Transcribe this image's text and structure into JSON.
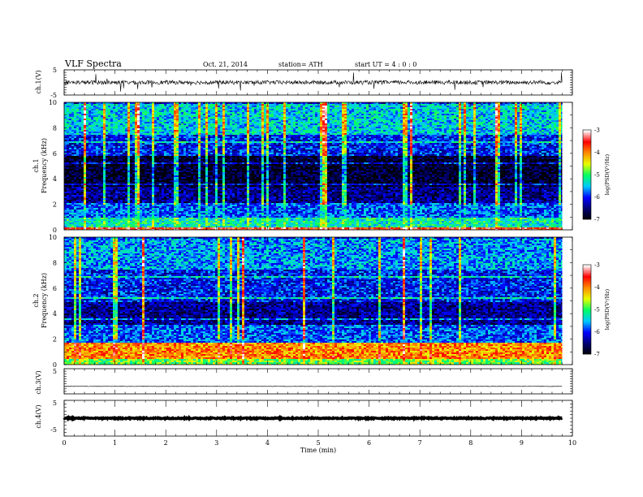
{
  "header": {
    "title": "VLF  Spectra",
    "date": "Oct. 21, 2014",
    "station": "station= ATH",
    "start": "start  UT  =   4  : 0  : 0"
  },
  "chart_data": [
    {
      "type": "line",
      "id": "ch1-voltage",
      "ylabel": "ch.1(V)",
      "ylim": [
        -5,
        5
      ],
      "yticks": [
        "5",
        "-5"
      ],
      "xlim": [
        0,
        10
      ],
      "signal": {
        "baseline": 0.0,
        "noise_amplitude": 0.8,
        "spike_amplitude": 4.0,
        "end_time": 9.8
      }
    },
    {
      "type": "heatmap",
      "id": "ch1-spectrogram",
      "ylabel": "ch.1\nFrequency  (kHz)",
      "ylabel_lines": [
        "ch.1",
        "Frequency  (kHz)"
      ],
      "ylim": [
        0,
        10
      ],
      "yticks": [
        "0",
        "2",
        "4",
        "6",
        "8",
        "10"
      ],
      "xlim": [
        0,
        10
      ],
      "end_time": 9.8,
      "bands": [
        {
          "f0": 0.0,
          "f1": 0.3,
          "level": -3.6
        },
        {
          "f0": 0.3,
          "f1": 1.0,
          "level": -5.2
        },
        {
          "f0": 1.0,
          "f1": 2.2,
          "level": -5.8
        },
        {
          "f0": 2.2,
          "f1": 3.4,
          "level": -6.4
        },
        {
          "f0": 3.4,
          "f1": 5.9,
          "level": -6.8
        },
        {
          "f0": 5.9,
          "f1": 7.5,
          "level": -6.0
        },
        {
          "f0": 7.5,
          "f1": 10.0,
          "level": -5.4
        }
      ],
      "colorbar": {
        "label": "log(PSD(V²/Hz)",
        "ticks": [
          "-3",
          "-4",
          "-5",
          "-6",
          "-7"
        ],
        "range": [
          -7,
          -3
        ],
        "colors": [
          "#000000",
          "#00006e",
          "#0000ff",
          "#00c8ff",
          "#00ff64",
          "#e6ff00",
          "#ff8c00",
          "#ff0000",
          "#ffffff"
        ]
      }
    },
    {
      "type": "heatmap",
      "id": "ch2-spectrogram",
      "ylabel": "ch.2\nFrequency  (kHz)",
      "ylabel_lines": [
        "ch.2",
        "Frequency  (kHz)"
      ],
      "ylim": [
        0,
        10
      ],
      "yticks": [
        "0",
        "2",
        "4",
        "6",
        "8",
        "10"
      ],
      "xlim": [
        0,
        10
      ],
      "end_time": 9.8,
      "bands": [
        {
          "f0": 0.0,
          "f1": 0.5,
          "level": -4.8
        },
        {
          "f0": 0.5,
          "f1": 1.8,
          "level": -4.0
        },
        {
          "f0": 1.8,
          "f1": 3.2,
          "level": -5.8
        },
        {
          "f0": 3.2,
          "f1": 5.0,
          "level": -6.4
        },
        {
          "f0": 5.0,
          "f1": 7.5,
          "level": -6.0
        },
        {
          "f0": 7.5,
          "f1": 10.0,
          "level": -5.6
        }
      ],
      "colorbar": {
        "label": "log(PSD(V²/Hz)",
        "ticks": [
          "-3",
          "-4",
          "-5",
          "-6",
          "-7"
        ],
        "range": [
          -7,
          -3
        ],
        "colors": [
          "#000000",
          "#00006e",
          "#0000ff",
          "#00c8ff",
          "#00ff64",
          "#e6ff00",
          "#ff8c00",
          "#ff0000",
          "#ffffff"
        ]
      }
    },
    {
      "type": "line",
      "id": "ch3-voltage",
      "ylabel": "ch.3(V)",
      "ylim": [
        -5,
        5
      ],
      "yticks": [
        "5"
      ],
      "xlim": [
        0,
        10
      ],
      "signal": {
        "baseline": -2.0,
        "noise_amplitude": 0.1,
        "spike_amplitude": 0.2,
        "end_time": 9.8
      }
    },
    {
      "type": "line",
      "id": "ch4-voltage",
      "ylabel": "ch.4(V)",
      "ylim": [
        -5,
        5
      ],
      "yticks": [
        "5",
        "-5"
      ],
      "xlim": [
        0,
        10
      ],
      "signal": {
        "baseline": 0.0,
        "noise_amplitude": 0.15,
        "spike_amplitude": 0.0,
        "end_time": 9.8,
        "thick": true
      }
    }
  ],
  "x_axis": {
    "label": "Time  (min)",
    "ticks": [
      "0",
      "1",
      "2",
      "3",
      "4",
      "5",
      "6",
      "7",
      "8",
      "9",
      "10"
    ],
    "range": [
      0,
      10
    ]
  }
}
